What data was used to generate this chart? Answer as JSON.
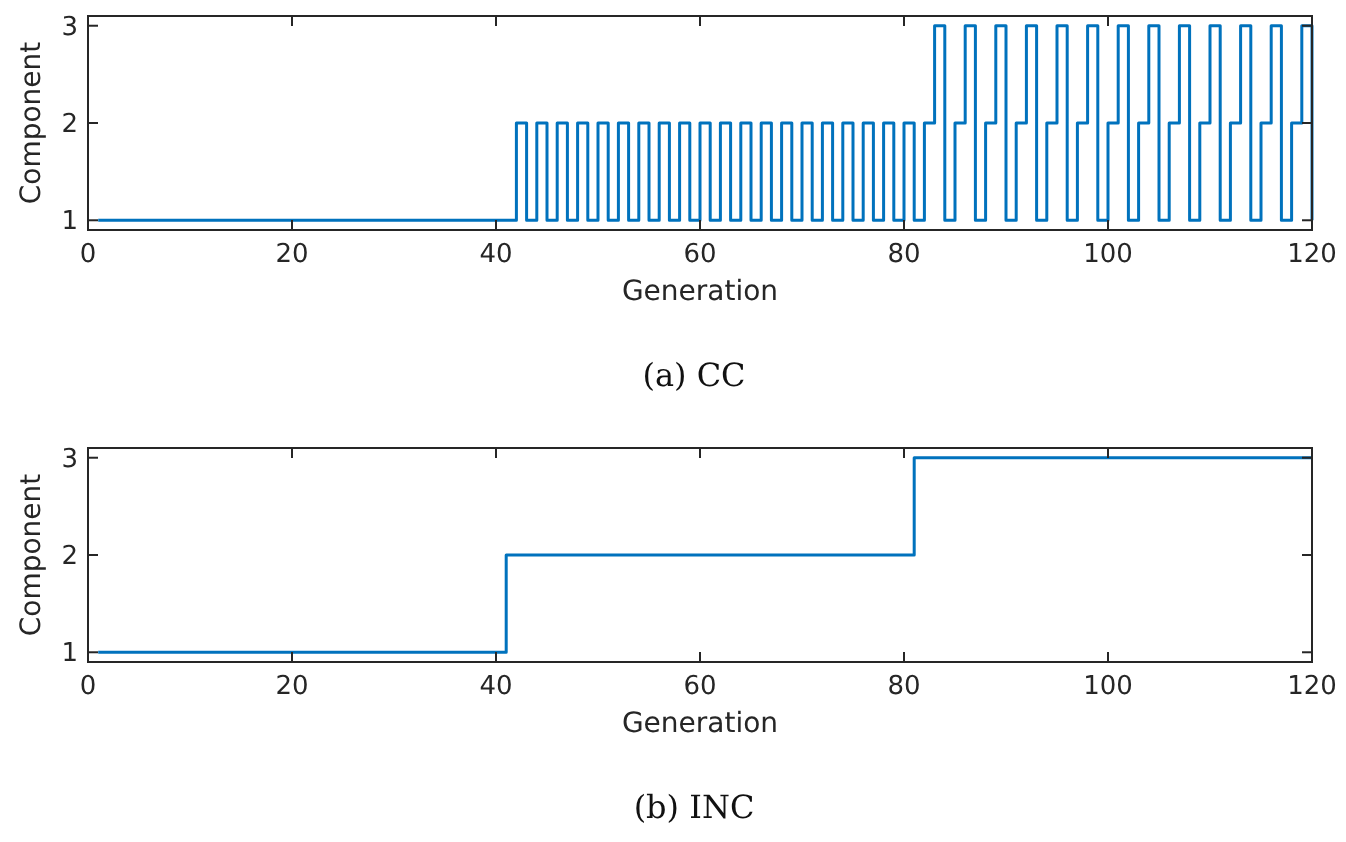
{
  "chart_data": [
    {
      "type": "step",
      "title": "(a)  CC",
      "xlabel": "Generation",
      "ylabel": "Component",
      "x": [
        1,
        2,
        3,
        4,
        5,
        6,
        7,
        8,
        9,
        10,
        11,
        12,
        13,
        14,
        15,
        16,
        17,
        18,
        19,
        20,
        21,
        22,
        23,
        24,
        25,
        26,
        27,
        28,
        29,
        30,
        31,
        32,
        33,
        34,
        35,
        36,
        37,
        38,
        39,
        40,
        41,
        42,
        43,
        44,
        45,
        46,
        47,
        48,
        49,
        50,
        51,
        52,
        53,
        54,
        55,
        56,
        57,
        58,
        59,
        60,
        61,
        62,
        63,
        64,
        65,
        66,
        67,
        68,
        69,
        70,
        71,
        72,
        73,
        74,
        75,
        76,
        77,
        78,
        79,
        80,
        81,
        82,
        83,
        84,
        85,
        86,
        87,
        88,
        89,
        90,
        91,
        92,
        93,
        94,
        95,
        96,
        97,
        98,
        99,
        100,
        101,
        102,
        103,
        104,
        105,
        106,
        107,
        108,
        109,
        110,
        111,
        112,
        113,
        114,
        115,
        116,
        117,
        118,
        119,
        120
      ],
      "series": [
        {
          "color": "#0072bd",
          "values": [
            1,
            1,
            1,
            1,
            1,
            1,
            1,
            1,
            1,
            1,
            1,
            1,
            1,
            1,
            1,
            1,
            1,
            1,
            1,
            1,
            1,
            1,
            1,
            1,
            1,
            1,
            1,
            1,
            1,
            1,
            1,
            1,
            1,
            1,
            1,
            1,
            1,
            1,
            1,
            1,
            1,
            2,
            1,
            2,
            1,
            2,
            1,
            2,
            1,
            2,
            1,
            2,
            1,
            2,
            1,
            2,
            1,
            2,
            1,
            2,
            1,
            2,
            1,
            2,
            1,
            2,
            1,
            2,
            1,
            2,
            1,
            2,
            1,
            2,
            1,
            2,
            1,
            2,
            1,
            2,
            1,
            2,
            3,
            1,
            2,
            3,
            1,
            2,
            3,
            1,
            2,
            3,
            1,
            2,
            3,
            1,
            2,
            3,
            1,
            2,
            3,
            1,
            2,
            3,
            1,
            2,
            3,
            1,
            2,
            3,
            1,
            2,
            3,
            1,
            2,
            3,
            1,
            2,
            3,
            1
          ]
        }
      ],
      "xlim": [
        0,
        120
      ],
      "ylim": [
        0.9,
        3.1
      ],
      "xticks": [
        0,
        20,
        40,
        60,
        80,
        100,
        120
      ],
      "yticks": [
        1,
        2,
        3
      ],
      "grid": false
    },
    {
      "type": "step",
      "title": "(b)  INC",
      "xlabel": "Generation",
      "ylabel": "Component",
      "x": [
        1,
        2,
        3,
        4,
        5,
        6,
        7,
        8,
        9,
        10,
        11,
        12,
        13,
        14,
        15,
        16,
        17,
        18,
        19,
        20,
        21,
        22,
        23,
        24,
        25,
        26,
        27,
        28,
        29,
        30,
        31,
        32,
        33,
        34,
        35,
        36,
        37,
        38,
        39,
        40,
        41,
        42,
        43,
        44,
        45,
        46,
        47,
        48,
        49,
        50,
        51,
        52,
        53,
        54,
        55,
        56,
        57,
        58,
        59,
        60,
        61,
        62,
        63,
        64,
        65,
        66,
        67,
        68,
        69,
        70,
        71,
        72,
        73,
        74,
        75,
        76,
        77,
        78,
        79,
        80,
        81,
        82,
        83,
        84,
        85,
        86,
        87,
        88,
        89,
        90,
        91,
        92,
        93,
        94,
        95,
        96,
        97,
        98,
        99,
        100,
        101,
        102,
        103,
        104,
        105,
        106,
        107,
        108,
        109,
        110,
        111,
        112,
        113,
        114,
        115,
        116,
        117,
        118,
        119,
        120
      ],
      "series": [
        {
          "color": "#0072bd",
          "values": [
            1,
            1,
            1,
            1,
            1,
            1,
            1,
            1,
            1,
            1,
            1,
            1,
            1,
            1,
            1,
            1,
            1,
            1,
            1,
            1,
            1,
            1,
            1,
            1,
            1,
            1,
            1,
            1,
            1,
            1,
            1,
            1,
            1,
            1,
            1,
            1,
            1,
            1,
            1,
            1,
            2,
            2,
            2,
            2,
            2,
            2,
            2,
            2,
            2,
            2,
            2,
            2,
            2,
            2,
            2,
            2,
            2,
            2,
            2,
            2,
            2,
            2,
            2,
            2,
            2,
            2,
            2,
            2,
            2,
            2,
            2,
            2,
            2,
            2,
            2,
            2,
            2,
            2,
            2,
            2,
            3,
            3,
            3,
            3,
            3,
            3,
            3,
            3,
            3,
            3,
            3,
            3,
            3,
            3,
            3,
            3,
            3,
            3,
            3,
            3,
            3,
            3,
            3,
            3,
            3,
            3,
            3,
            3,
            3,
            3,
            3,
            3,
            3,
            3,
            3,
            3,
            3,
            3,
            3,
            3
          ]
        }
      ],
      "xlim": [
        0,
        120
      ],
      "ylim": [
        0.9,
        3.1
      ],
      "xticks": [
        0,
        20,
        40,
        60,
        80,
        100,
        120
      ],
      "yticks": [
        1,
        2,
        3
      ],
      "grid": false
    }
  ]
}
